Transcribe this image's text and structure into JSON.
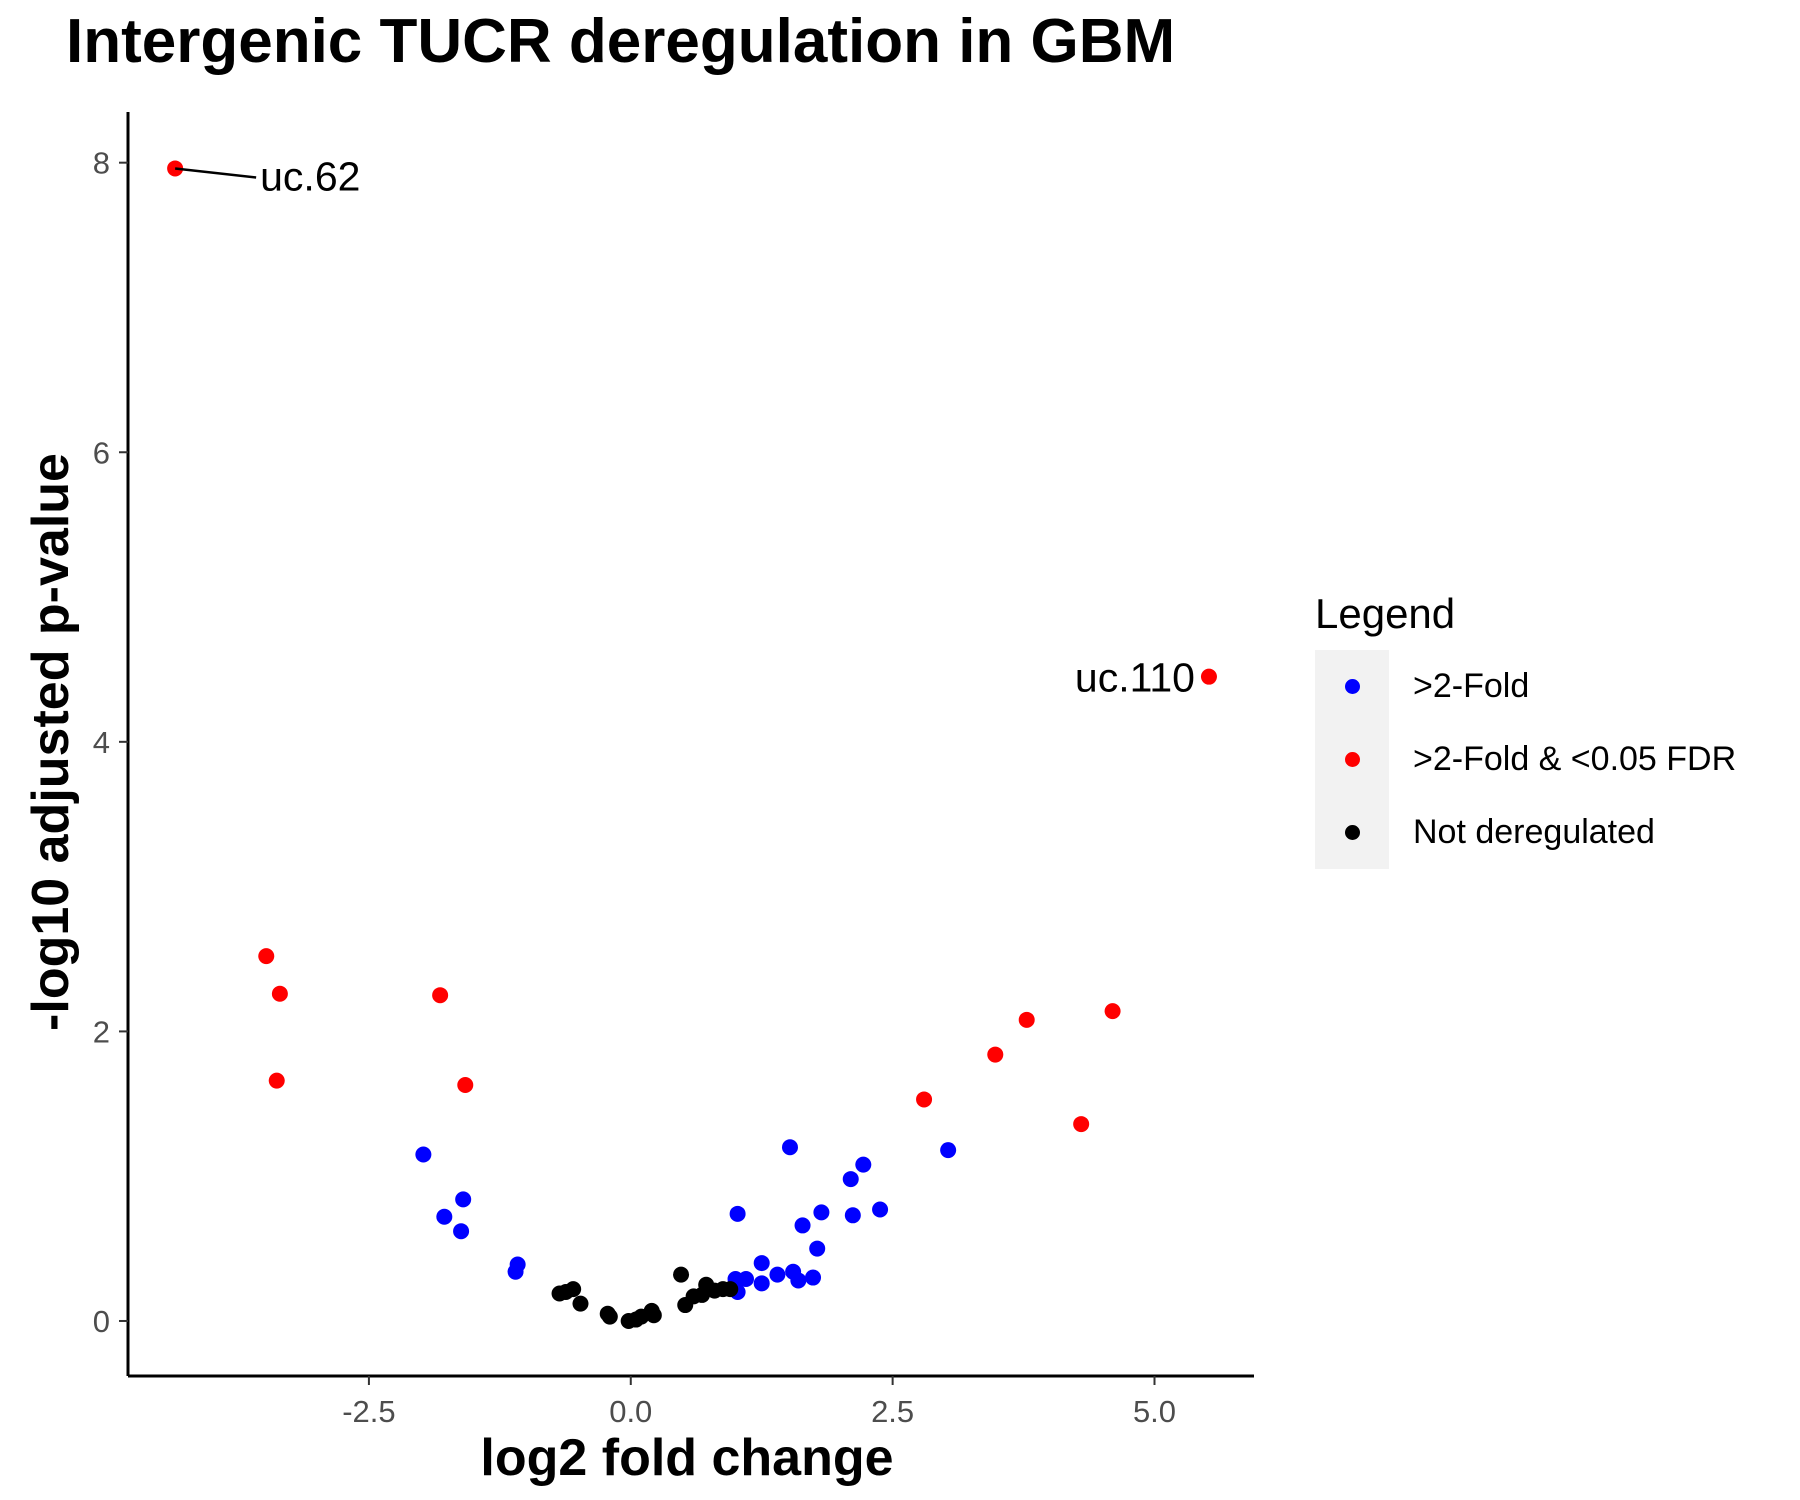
{
  "chart_data": {
    "type": "scatter",
    "title": "Intergenic TUCR deregulation in GBM",
    "xlabel": "log2 fold change",
    "ylabel": "-log10 adjusted p-value",
    "xlim": [
      -4.8,
      5.95
    ],
    "ylim": [
      -0.38,
      8.35
    ],
    "x_ticks": [
      -2.5,
      0.0,
      2.5,
      5.0
    ],
    "x_tick_labels": [
      "-2.5",
      "0.0",
      "2.5",
      "5.0"
    ],
    "y_ticks": [
      0,
      2,
      4,
      6,
      8
    ],
    "y_tick_labels": [
      "0",
      "2",
      "4",
      "6",
      "8"
    ],
    "grid": false,
    "legend": {
      "title": "Legend",
      "placement": "right",
      "entries": [
        {
          "label": ">2-Fold",
          "color": "#0000ff"
        },
        {
          "label": ">2-Fold & <0.05 FDR",
          "color": "#ff0000"
        },
        {
          "label": "Not deregulated",
          "color": "#000000"
        }
      ]
    },
    "series": [
      {
        "name": ">2-Fold & <0.05 FDR",
        "color": "#ff0000",
        "points": [
          [
            -4.35,
            7.96
          ],
          [
            -3.48,
            2.52
          ],
          [
            -3.35,
            2.26
          ],
          [
            -3.38,
            1.66
          ],
          [
            -1.82,
            2.25
          ],
          [
            -1.58,
            1.63
          ],
          [
            2.8,
            1.53
          ],
          [
            3.48,
            1.84
          ],
          [
            3.78,
            2.08
          ],
          [
            4.3,
            1.36
          ],
          [
            4.6,
            2.14
          ],
          [
            5.52,
            4.45
          ]
        ]
      },
      {
        "name": ">2-Fold",
        "color": "#0000ff",
        "points": [
          [
            -1.98,
            1.15
          ],
          [
            -1.78,
            0.72
          ],
          [
            -1.6,
            0.84
          ],
          [
            -1.62,
            0.62
          ],
          [
            -1.08,
            0.39
          ],
          [
            -1.1,
            0.34
          ],
          [
            1.0,
            0.29
          ],
          [
            1.02,
            0.2
          ],
          [
            1.1,
            0.29
          ],
          [
            1.02,
            0.74
          ],
          [
            1.25,
            0.4
          ],
          [
            1.25,
            0.26
          ],
          [
            1.4,
            0.32
          ],
          [
            1.55,
            0.34
          ],
          [
            1.6,
            0.28
          ],
          [
            1.74,
            0.3
          ],
          [
            1.52,
            1.2
          ],
          [
            1.64,
            0.66
          ],
          [
            1.78,
            0.5
          ],
          [
            1.82,
            0.75
          ],
          [
            2.1,
            0.98
          ],
          [
            2.12,
            0.73
          ],
          [
            2.22,
            1.08
          ],
          [
            2.38,
            0.77
          ],
          [
            3.03,
            1.18
          ]
        ]
      },
      {
        "name": "Not deregulated",
        "color": "#000000",
        "points": [
          [
            -0.68,
            0.19
          ],
          [
            -0.62,
            0.2
          ],
          [
            -0.55,
            0.22
          ],
          [
            -0.48,
            0.12
          ],
          [
            -0.22,
            0.05
          ],
          [
            -0.2,
            0.03
          ],
          [
            -0.02,
            0.0
          ],
          [
            0.05,
            0.01
          ],
          [
            0.1,
            0.03
          ],
          [
            0.2,
            0.07
          ],
          [
            0.22,
            0.04
          ],
          [
            0.48,
            0.32
          ],
          [
            0.52,
            0.11
          ],
          [
            0.6,
            0.17
          ],
          [
            0.68,
            0.18
          ],
          [
            0.72,
            0.25
          ],
          [
            0.8,
            0.21
          ],
          [
            0.88,
            0.22
          ],
          [
            0.95,
            0.22
          ]
        ]
      }
    ],
    "annotations": [
      {
        "text": "uc.62",
        "x": -4.35,
        "y": 7.96
      },
      {
        "text": "uc.110",
        "x": 5.52,
        "y": 4.45
      }
    ]
  }
}
